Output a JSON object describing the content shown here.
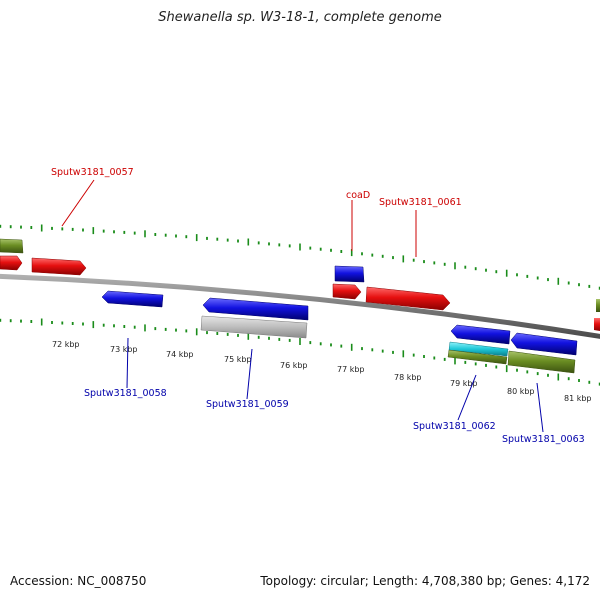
{
  "title": "Shewanella sp. W3-18-1, complete genome",
  "footer": {
    "accession": "Accession: NC_008750",
    "summary": "Topology: circular; Length: 4,708,380 bp; Genes: 4,172"
  },
  "colors": {
    "red": "#e61010",
    "blue": "#1212e0",
    "olive": "#6b8e23",
    "gray": "#b4b4b4",
    "cyan": "#1ec8d8",
    "tick": "#1a8c1a",
    "backbone": "#808080",
    "label_red": "#cc0000",
    "label_blue": "#0000aa"
  },
  "scale": {
    "unit_labels": [
      "72 kbp",
      "73 kbp",
      "74 kbp",
      "75 kbp",
      "76 kbp",
      "77 kbp",
      "78 kbp",
      "79 kbp",
      "80 kbp",
      "81 kbp"
    ]
  },
  "gene_labels": {
    "g0057": "Sputw3181_0057",
    "g0058": "Sputw3181_0058",
    "g0059": "Sputw3181_0059",
    "coaD": "coaD",
    "g0061": "Sputw3181_0061",
    "g0062": "Sputw3181_0062",
    "g0063": "Sputw3181_0063"
  }
}
